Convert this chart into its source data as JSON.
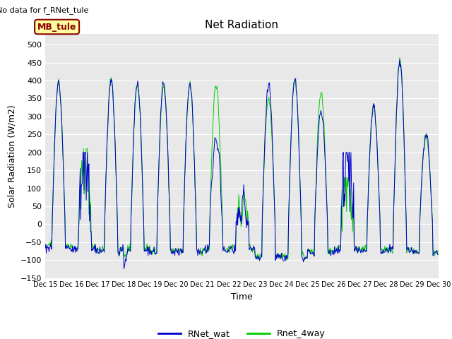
{
  "title": "Net Radiation",
  "ylabel": "Solar Radiation (W/m2)",
  "xlabel": "Time",
  "ylim": [
    -150,
    530
  ],
  "yticks": [
    -150,
    -100,
    -50,
    0,
    50,
    100,
    150,
    200,
    250,
    300,
    350,
    400,
    450,
    500
  ],
  "note": "No data for f_RNet_tule",
  "inset_label": "MB_tule",
  "legend": [
    "RNet_wat",
    "Rnet_4way"
  ],
  "line_colors": [
    "#0000cc",
    "#00cc00"
  ],
  "background_color": "#e8e8e8",
  "fig_background": "#ffffff",
  "title_fontsize": 11,
  "axis_fontsize": 9,
  "tick_fontsize": 8,
  "note_fontsize": 8,
  "legend_fontsize": 9
}
